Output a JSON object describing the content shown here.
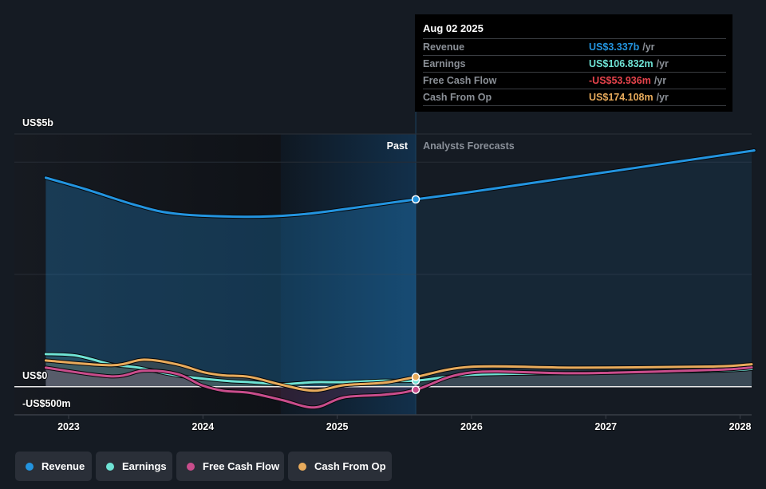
{
  "tooltip": {
    "date": "Aug 02 2025",
    "rows": [
      {
        "label": "Revenue",
        "value": "US$3.337b",
        "unit": "/yr",
        "color": "#2394df"
      },
      {
        "label": "Earnings",
        "value": "US$106.832m",
        "unit": "/yr",
        "color": "#6fe3d5"
      },
      {
        "label": "Free Cash Flow",
        "value": "-US$53.936m",
        "unit": "/yr",
        "color": "#e6434b"
      },
      {
        "label": "Cash From Op",
        "value": "US$174.108m",
        "unit": "/yr",
        "color": "#e8ab5c"
      }
    ]
  },
  "legend": {
    "items": [
      {
        "label": "Revenue",
        "color": "#2394df"
      },
      {
        "label": "Earnings",
        "color": "#6fe3d5"
      },
      {
        "label": "Free Cash Flow",
        "color": "#c94d8c"
      },
      {
        "label": "Cash From Op",
        "color": "#e8ab5c"
      }
    ]
  },
  "chart_data": {
    "type": "area",
    "title": "",
    "xlabel": "",
    "ylabel": "",
    "x_unit": "year",
    "y_unit": "US$ millions",
    "xlim": [
      2022.596,
      2028.086
    ],
    "ylim": [
      -500,
      4500
    ],
    "grid": true,
    "gridlines": [
      2000,
      4000
    ],
    "x_ticks": [
      {
        "value": 2023,
        "label": "2023"
      },
      {
        "value": 2024,
        "label": "2024"
      },
      {
        "value": 2025,
        "label": "2025"
      },
      {
        "value": 2026,
        "label": "2026"
      },
      {
        "value": 2027,
        "label": "2027"
      },
      {
        "value": 2028,
        "label": "2028"
      }
    ],
    "y_ticks": [
      {
        "value": 5000,
        "label": "US$5b"
      },
      {
        "value": 0,
        "label": "US$0"
      },
      {
        "value": -500,
        "label": "-US$500m"
      }
    ],
    "regions": {
      "past_label": "Past",
      "forecast_label": "Analysts Forecasts",
      "highlight_start": 2024.58,
      "split": 2025.585
    },
    "series": [
      {
        "name": "Revenue",
        "color": "#2394df",
        "points": [
          [
            2022.83,
            3721
          ],
          [
            2023.12,
            3522
          ],
          [
            2023.52,
            3220
          ],
          [
            2023.81,
            3078
          ],
          [
            2024.31,
            3026
          ],
          [
            2024.71,
            3064
          ],
          [
            2025.1,
            3177
          ],
          [
            2025.585,
            3337
          ],
          [
            2026.0,
            3470
          ],
          [
            2027.0,
            3820
          ],
          [
            2028.0,
            4170
          ],
          [
            2028.086,
            4200
          ]
        ]
      },
      {
        "name": "Earnings",
        "color": "#6fe3d5",
        "points": [
          [
            2022.83,
            581
          ],
          [
            2023.06,
            553
          ],
          [
            2023.32,
            397
          ],
          [
            2023.52,
            340
          ],
          [
            2023.81,
            199
          ],
          [
            2024.15,
            109
          ],
          [
            2024.35,
            81
          ],
          [
            2024.59,
            47
          ],
          [
            2024.83,
            81
          ],
          [
            2025.05,
            81
          ],
          [
            2025.35,
            109
          ],
          [
            2025.585,
            106.832
          ],
          [
            2026.0,
            213
          ],
          [
            2026.8,
            245
          ],
          [
            2027.8,
            285
          ],
          [
            2028.086,
            316
          ]
        ]
      },
      {
        "name": "Free Cash Flow",
        "color": "#c94d8c",
        "points": [
          [
            2022.83,
            340
          ],
          [
            2023.32,
            184
          ],
          [
            2023.56,
            284
          ],
          [
            2023.81,
            227
          ],
          [
            2023.99,
            28
          ],
          [
            2024.15,
            -71
          ],
          [
            2024.35,
            -109
          ],
          [
            2024.59,
            -237
          ],
          [
            2024.83,
            -369
          ],
          [
            2025.05,
            -189
          ],
          [
            2025.35,
            -142
          ],
          [
            2025.585,
            -53.936
          ],
          [
            2026.0,
            255
          ],
          [
            2026.8,
            240
          ],
          [
            2027.8,
            300
          ],
          [
            2028.086,
            345
          ]
        ]
      },
      {
        "name": "Cash From Op",
        "color": "#e8ab5c",
        "points": [
          [
            2022.83,
            468
          ],
          [
            2023.32,
            383
          ],
          [
            2023.56,
            482
          ],
          [
            2023.81,
            397
          ],
          [
            2024.01,
            255
          ],
          [
            2024.15,
            203
          ],
          [
            2024.35,
            174
          ],
          [
            2024.59,
            33
          ],
          [
            2024.83,
            -71
          ],
          [
            2025.05,
            28
          ],
          [
            2025.35,
            71
          ],
          [
            2025.585,
            174.108
          ],
          [
            2026.0,
            355
          ],
          [
            2026.8,
            340
          ],
          [
            2027.8,
            360
          ],
          [
            2028.086,
            401
          ]
        ]
      }
    ]
  }
}
